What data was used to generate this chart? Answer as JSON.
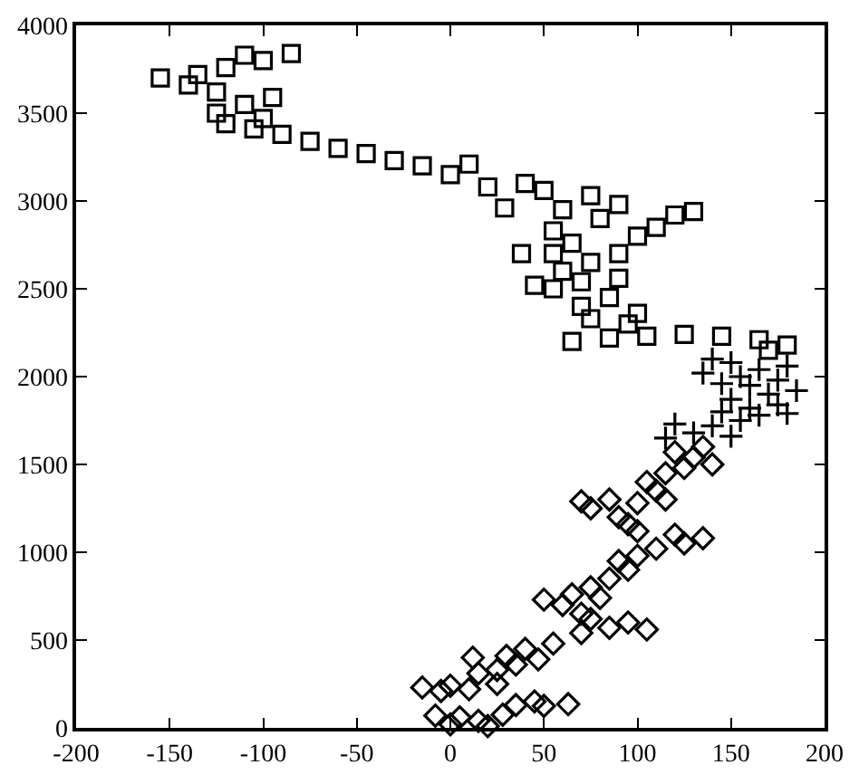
{
  "chart_data": {
    "type": "scatter",
    "xlim": [
      -200,
      200
    ],
    "ylim": [
      0,
      4000
    ],
    "xticks": [
      -200,
      -150,
      -100,
      -50,
      0,
      50,
      100,
      150,
      200
    ],
    "yticks": [
      0,
      500,
      1000,
      1500,
      2000,
      2500,
      3000,
      3500,
      4000
    ],
    "series": [
      {
        "color": "#000000",
        "marker": "diamond",
        "x": [
          -8,
          5,
          15,
          28,
          0,
          20,
          35,
          50,
          63,
          45,
          -15,
          0,
          10,
          25,
          -5,
          15,
          25,
          35,
          12,
          30,
          47,
          40,
          55,
          70,
          85,
          105,
          95,
          75,
          70,
          60,
          50,
          65,
          80,
          75,
          85,
          95,
          90,
          100,
          110,
          125,
          135,
          120,
          100,
          95,
          90,
          75,
          70,
          85,
          100,
          115,
          110,
          105,
          115,
          125,
          140,
          130,
          120,
          135
        ],
        "values": [
          70,
          60,
          40,
          75,
          20,
          10,
          130,
          125,
          135,
          150,
          230,
          240,
          220,
          250,
          210,
          310,
          330,
          360,
          400,
          410,
          390,
          450,
          480,
          540,
          570,
          560,
          600,
          620,
          650,
          700,
          730,
          760,
          740,
          800,
          850,
          900,
          950,
          980,
          1020,
          1050,
          1080,
          1100,
          1120,
          1160,
          1200,
          1250,
          1290,
          1300,
          1280,
          1300,
          1350,
          1400,
          1450,
          1480,
          1500,
          1540,
          1570,
          1600
        ]
      },
      {
        "color": "#000000",
        "marker": "cross",
        "x": [
          115,
          130,
          150,
          140,
          120,
          155,
          165,
          180,
          145,
          160,
          175,
          150,
          170,
          185,
          160,
          145,
          175,
          155,
          135,
          165,
          180,
          150,
          140
        ],
        "values": [
          1650,
          1680,
          1660,
          1720,
          1730,
          1750,
          1780,
          1790,
          1800,
          1820,
          1840,
          1870,
          1900,
          1920,
          1950,
          1960,
          1980,
          2000,
          2020,
          2040,
          2060,
          2080,
          2100
        ]
      },
      {
        "color": "#000000",
        "marker": "square",
        "x": [
          65,
          85,
          105,
          125,
          145,
          165,
          180,
          170,
          95,
          75,
          100,
          70,
          85,
          55,
          45,
          70,
          90,
          60,
          75,
          38,
          55,
          90,
          65,
          100,
          55,
          110,
          80,
          120,
          130,
          60,
          29,
          90,
          75,
          50,
          20,
          40,
          0,
          -15,
          10,
          -30,
          -45,
          -60,
          -75,
          -90,
          -105,
          -120,
          -100,
          -125,
          -110,
          -95,
          -125,
          -140,
          -155,
          -135,
          -120,
          -100,
          -85,
          -110
        ],
        "values": [
          2200,
          2220,
          2230,
          2240,
          2230,
          2210,
          2180,
          2150,
          2300,
          2330,
          2360,
          2400,
          2450,
          2500,
          2520,
          2540,
          2560,
          2600,
          2650,
          2700,
          2700,
          2700,
          2760,
          2800,
          2830,
          2850,
          2900,
          2920,
          2940,
          2950,
          2960,
          2980,
          3030,
          3060,
          3080,
          3100,
          3150,
          3200,
          3210,
          3230,
          3270,
          3300,
          3340,
          3380,
          3410,
          3440,
          3470,
          3500,
          3550,
          3590,
          3620,
          3660,
          3700,
          3720,
          3760,
          3800,
          3840,
          3830
        ]
      }
    ]
  }
}
